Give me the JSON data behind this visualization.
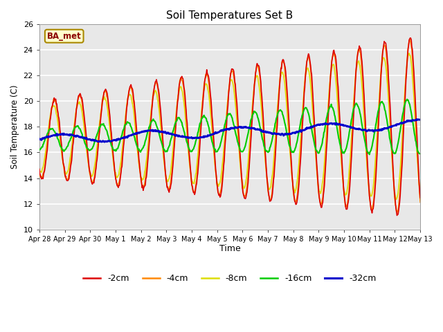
{
  "title": "Soil Temperatures Set B",
  "xlabel": "Time",
  "ylabel": "Soil Temperature (C)",
  "ylim": [
    10,
    26
  ],
  "yticks": [
    10,
    12,
    14,
    16,
    18,
    20,
    22,
    24,
    26
  ],
  "fig_bg_color": "#ffffff",
  "plot_bg_color": "#e8e8e8",
  "legend_label": "BA_met",
  "series_colors": {
    "-2cm": "#dd0000",
    "-4cm": "#ff8800",
    "-8cm": "#dddd00",
    "-16cm": "#00cc00",
    "-32cm": "#0000cc"
  },
  "series_linewidths": {
    "-2cm": 1.2,
    "-4cm": 1.2,
    "-8cm": 1.2,
    "-16cm": 1.5,
    "-32cm": 2.0
  },
  "xtick_labels": [
    "Apr 28",
    "Apr 29",
    "Apr 30",
    "May 1",
    "May 2",
    "May 3",
    "May 4",
    "May 5",
    "May 6",
    "May 7",
    "May 8",
    "May 9",
    "May 10",
    "May 11",
    "May 12",
    "May 13"
  ],
  "num_days": 15
}
